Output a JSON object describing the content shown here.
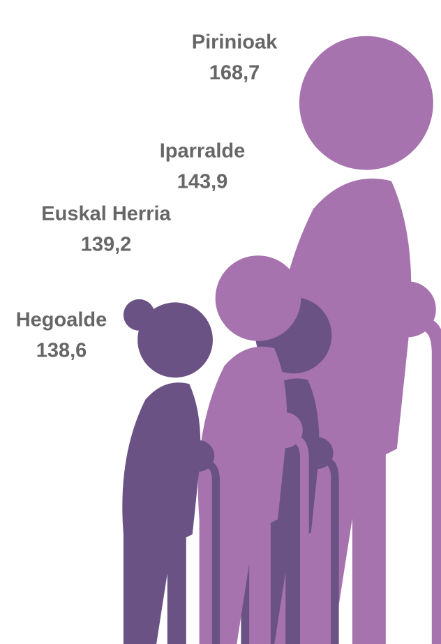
{
  "chart_data": {
    "type": "pictogram",
    "categories": [
      "Pirinioak",
      "Iparralde",
      "Euskal Herria",
      "Hegoalde"
    ],
    "values": [
      168.7,
      143.9,
      139.2,
      138.6
    ],
    "value_labels": [
      "168,7",
      "143,9",
      "139,2",
      "138,6"
    ],
    "colors": [
      "#a673ae",
      "#a673ae",
      "#6a5384",
      "#6a5384"
    ]
  }
}
